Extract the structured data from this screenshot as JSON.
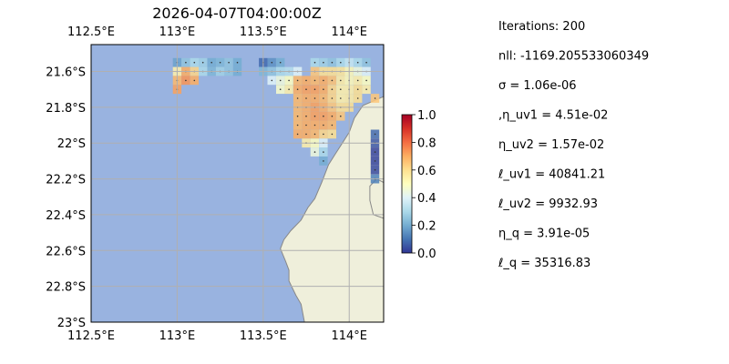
{
  "title": "2026-04-07T04:00:00Z",
  "chart_data": {
    "type": "heatmap",
    "map": {
      "lon_range": [
        112.5,
        114.2
      ],
      "lat_range": [
        -23.0,
        -21.45
      ],
      "projection": "plate carree",
      "grid": true,
      "ocean_color": "#99b3e0",
      "land_color": "#efefdb",
      "coastline_color": "#888888"
    },
    "x_ticks": [
      {
        "value": 112.5,
        "label": "112.5°E"
      },
      {
        "value": 113.0,
        "label": "113°E"
      },
      {
        "value": 113.5,
        "label": "113.5°E"
      },
      {
        "value": 114.0,
        "label": "114°E"
      }
    ],
    "y_ticks": [
      {
        "value": -21.6,
        "label": "21.6°S"
      },
      {
        "value": -21.8,
        "label": "21.8°S"
      },
      {
        "value": -22.0,
        "label": "22°S"
      },
      {
        "value": -22.2,
        "label": "22.2°S"
      },
      {
        "value": -22.4,
        "label": "22.4°S"
      },
      {
        "value": -22.6,
        "label": "22.6°S"
      },
      {
        "value": -22.8,
        "label": "22.8°S"
      },
      {
        "value": -23.0,
        "label": "23°S"
      }
    ],
    "colorbar": {
      "colormap": "RdYlBu_r",
      "range": [
        0.0,
        1.0
      ],
      "ticks": [
        "0.0",
        "0.2",
        "0.4",
        "0.6",
        "0.8",
        "1.0"
      ]
    },
    "coastline": [
      [
        114.2,
        -21.74
      ],
      [
        114.08,
        -21.79
      ],
      [
        114.03,
        -21.86
      ],
      [
        114.0,
        -21.94
      ],
      [
        113.96,
        -22.0
      ],
      [
        113.92,
        -22.06
      ],
      [
        113.88,
        -22.12
      ],
      [
        113.84,
        -22.22
      ],
      [
        113.8,
        -22.31
      ],
      [
        113.76,
        -22.36
      ],
      [
        113.72,
        -22.43
      ],
      [
        113.66,
        -22.49
      ],
      [
        113.62,
        -22.54
      ],
      [
        113.6,
        -22.59
      ],
      [
        113.63,
        -22.66
      ],
      [
        113.65,
        -22.71
      ],
      [
        113.65,
        -22.77
      ],
      [
        113.69,
        -22.85
      ],
      [
        113.72,
        -22.9
      ],
      [
        113.74,
        -23.0
      ],
      [
        114.2,
        -23.0
      ]
    ],
    "islands": [
      [
        [
          114.12,
          -22.24
        ],
        [
          114.16,
          -22.2
        ],
        [
          114.2,
          -22.22
        ],
        [
          114.2,
          -22.42
        ],
        [
          114.14,
          -22.4
        ],
        [
          114.12,
          -22.32
        ]
      ]
    ],
    "cell_size_deg": 0.05,
    "cells": [
      {
        "lon": 113.0,
        "lat": -21.55,
        "value": 0.18
      },
      {
        "lon": 113.05,
        "lat": -21.55,
        "value": 0.25
      },
      {
        "lon": 113.1,
        "lat": -21.55,
        "value": 0.3
      },
      {
        "lon": 113.15,
        "lat": -21.55,
        "value": 0.28
      },
      {
        "lon": 113.2,
        "lat": -21.55,
        "value": 0.2
      },
      {
        "lon": 113.25,
        "lat": -21.55,
        "value": 0.22
      },
      {
        "lon": 113.3,
        "lat": -21.55,
        "value": 0.25
      },
      {
        "lon": 113.35,
        "lat": -21.55,
        "value": 0.2
      },
      {
        "lon": 113.0,
        "lat": -21.6,
        "value": 0.55
      },
      {
        "lon": 113.05,
        "lat": -21.6,
        "value": 0.7
      },
      {
        "lon": 113.1,
        "lat": -21.6,
        "value": 0.62
      },
      {
        "lon": 113.15,
        "lat": -21.6,
        "value": 0.3
      },
      {
        "lon": 113.2,
        "lat": -21.6,
        "value": 0.22
      },
      {
        "lon": 113.25,
        "lat": -21.6,
        "value": 0.28
      },
      {
        "lon": 113.3,
        "lat": -21.6,
        "value": 0.25
      },
      {
        "lon": 113.35,
        "lat": -21.6,
        "value": 0.2
      },
      {
        "lon": 113.0,
        "lat": -21.65,
        "value": 0.68
      },
      {
        "lon": 113.05,
        "lat": -21.65,
        "value": 0.74
      },
      {
        "lon": 113.1,
        "lat": -21.65,
        "value": 0.7
      },
      {
        "lon": 113.0,
        "lat": -21.7,
        "value": 0.72
      },
      {
        "lon": 113.5,
        "lat": -21.55,
        "value": 0.08
      },
      {
        "lon": 113.55,
        "lat": -21.55,
        "value": 0.15
      },
      {
        "lon": 113.6,
        "lat": -21.55,
        "value": 0.2
      },
      {
        "lon": 113.5,
        "lat": -21.6,
        "value": 0.22
      },
      {
        "lon": 113.55,
        "lat": -21.6,
        "value": 0.25
      },
      {
        "lon": 113.6,
        "lat": -21.6,
        "value": 0.3
      },
      {
        "lon": 113.65,
        "lat": -21.6,
        "value": 0.32
      },
      {
        "lon": 113.7,
        "lat": -21.6,
        "value": 0.4
      },
      {
        "lon": 113.8,
        "lat": -21.55,
        "value": 0.3
      },
      {
        "lon": 113.85,
        "lat": -21.55,
        "value": 0.28
      },
      {
        "lon": 113.9,
        "lat": -21.55,
        "value": 0.25
      },
      {
        "lon": 113.95,
        "lat": -21.55,
        "value": 0.3
      },
      {
        "lon": 114.0,
        "lat": -21.55,
        "value": 0.35
      },
      {
        "lon": 114.05,
        "lat": -21.55,
        "value": 0.3
      },
      {
        "lon": 114.1,
        "lat": -21.55,
        "value": 0.25
      },
      {
        "lon": 113.55,
        "lat": -21.65,
        "value": 0.4
      },
      {
        "lon": 113.6,
        "lat": -21.65,
        "value": 0.45
      },
      {
        "lon": 113.65,
        "lat": -21.65,
        "value": 0.5
      },
      {
        "lon": 113.7,
        "lat": -21.65,
        "value": 0.68
      },
      {
        "lon": 113.75,
        "lat": -21.65,
        "value": 0.7
      },
      {
        "lon": 113.8,
        "lat": -21.6,
        "value": 0.65
      },
      {
        "lon": 113.85,
        "lat": -21.6,
        "value": 0.6
      },
      {
        "lon": 113.9,
        "lat": -21.6,
        "value": 0.6
      },
      {
        "lon": 113.95,
        "lat": -21.6,
        "value": 0.58
      },
      {
        "lon": 114.0,
        "lat": -21.6,
        "value": 0.52
      },
      {
        "lon": 114.05,
        "lat": -21.6,
        "value": 0.45
      },
      {
        "lon": 114.1,
        "lat": -21.6,
        "value": 0.4
      },
      {
        "lon": 113.8,
        "lat": -21.65,
        "value": 0.68
      },
      {
        "lon": 113.85,
        "lat": -21.65,
        "value": 0.7
      },
      {
        "lon": 113.9,
        "lat": -21.65,
        "value": 0.66
      },
      {
        "lon": 113.95,
        "lat": -21.65,
        "value": 0.56
      },
      {
        "lon": 114.0,
        "lat": -21.65,
        "value": 0.52
      },
      {
        "lon": 114.05,
        "lat": -21.65,
        "value": 0.55
      },
      {
        "lon": 114.1,
        "lat": -21.65,
        "value": 0.5
      },
      {
        "lon": 113.6,
        "lat": -21.7,
        "value": 0.48
      },
      {
        "lon": 113.65,
        "lat": -21.7,
        "value": 0.55
      },
      {
        "lon": 113.7,
        "lat": -21.7,
        "value": 0.7
      },
      {
        "lon": 113.75,
        "lat": -21.7,
        "value": 0.72
      },
      {
        "lon": 113.8,
        "lat": -21.7,
        "value": 0.72
      },
      {
        "lon": 113.85,
        "lat": -21.7,
        "value": 0.7
      },
      {
        "lon": 113.9,
        "lat": -21.7,
        "value": 0.62
      },
      {
        "lon": 113.95,
        "lat": -21.7,
        "value": 0.55
      },
      {
        "lon": 114.0,
        "lat": -21.7,
        "value": 0.55
      },
      {
        "lon": 114.05,
        "lat": -21.7,
        "value": 0.6
      },
      {
        "lon": 114.1,
        "lat": -21.7,
        "value": 0.55
      },
      {
        "lon": 113.7,
        "lat": -21.75,
        "value": 0.68
      },
      {
        "lon": 113.75,
        "lat": -21.75,
        "value": 0.7
      },
      {
        "lon": 113.8,
        "lat": -21.75,
        "value": 0.7
      },
      {
        "lon": 113.85,
        "lat": -21.75,
        "value": 0.68
      },
      {
        "lon": 113.9,
        "lat": -21.75,
        "value": 0.62
      },
      {
        "lon": 113.95,
        "lat": -21.75,
        "value": 0.55
      },
      {
        "lon": 114.0,
        "lat": -21.75,
        "value": 0.56
      },
      {
        "lon": 114.05,
        "lat": -21.75,
        "value": 0.6
      },
      {
        "lon": 113.7,
        "lat": -21.8,
        "value": 0.68
      },
      {
        "lon": 113.75,
        "lat": -21.8,
        "value": 0.7
      },
      {
        "lon": 113.8,
        "lat": -21.8,
        "value": 0.72
      },
      {
        "lon": 113.85,
        "lat": -21.8,
        "value": 0.7
      },
      {
        "lon": 113.9,
        "lat": -21.8,
        "value": 0.65
      },
      {
        "lon": 113.95,
        "lat": -21.8,
        "value": 0.6
      },
      {
        "lon": 114.0,
        "lat": -21.8,
        "value": 0.6
      },
      {
        "lon": 113.7,
        "lat": -21.85,
        "value": 0.68
      },
      {
        "lon": 113.75,
        "lat": -21.85,
        "value": 0.7
      },
      {
        "lon": 113.8,
        "lat": -21.85,
        "value": 0.72
      },
      {
        "lon": 113.85,
        "lat": -21.85,
        "value": 0.72
      },
      {
        "lon": 113.9,
        "lat": -21.85,
        "value": 0.7
      },
      {
        "lon": 113.95,
        "lat": -21.85,
        "value": 0.65
      },
      {
        "lon": 113.7,
        "lat": -21.9,
        "value": 0.68
      },
      {
        "lon": 113.75,
        "lat": -21.9,
        "value": 0.7
      },
      {
        "lon": 113.8,
        "lat": -21.9,
        "value": 0.7
      },
      {
        "lon": 113.85,
        "lat": -21.9,
        "value": 0.7
      },
      {
        "lon": 113.9,
        "lat": -21.9,
        "value": 0.68
      },
      {
        "lon": 113.7,
        "lat": -21.95,
        "value": 0.7
      },
      {
        "lon": 113.75,
        "lat": -21.95,
        "value": 0.7
      },
      {
        "lon": 113.8,
        "lat": -21.95,
        "value": 0.68
      },
      {
        "lon": 113.85,
        "lat": -21.95,
        "value": 0.62
      },
      {
        "lon": 113.9,
        "lat": -21.95,
        "value": 0.6
      },
      {
        "lon": 113.75,
        "lat": -22.0,
        "value": 0.55
      },
      {
        "lon": 113.8,
        "lat": -22.0,
        "value": 0.5
      },
      {
        "lon": 113.85,
        "lat": -22.0,
        "value": 0.4
      },
      {
        "lon": 113.8,
        "lat": -22.05,
        "value": 0.45
      },
      {
        "lon": 113.85,
        "lat": -22.05,
        "value": 0.3
      },
      {
        "lon": 113.85,
        "lat": -22.1,
        "value": 0.2
      },
      {
        "lon": 114.15,
        "lat": -21.75,
        "value": 0.65
      },
      {
        "lon": 114.15,
        "lat": -21.95,
        "value": 0.08
      },
      {
        "lon": 114.15,
        "lat": -22.0,
        "value": 0.05
      },
      {
        "lon": 114.15,
        "lat": -22.05,
        "value": 0.02
      },
      {
        "lon": 114.15,
        "lat": -22.1,
        "value": 0.02
      },
      {
        "lon": 114.15,
        "lat": -22.15,
        "value": 0.03
      },
      {
        "lon": 114.15,
        "lat": -22.2,
        "value": 0.12
      }
    ]
  },
  "params": [
    "Iterations: 200",
    "nll: -1169.205533060349",
    "σ = 1.06e-06",
    ",η_uv1 = 4.51e-02",
    "η_uv2 = 1.57e-02",
    "ℓ_uv1 = 40841.21",
    "ℓ_uv2 = 9932.93",
    "η_q = 3.91e-05",
    "ℓ_q = 35316.83"
  ]
}
